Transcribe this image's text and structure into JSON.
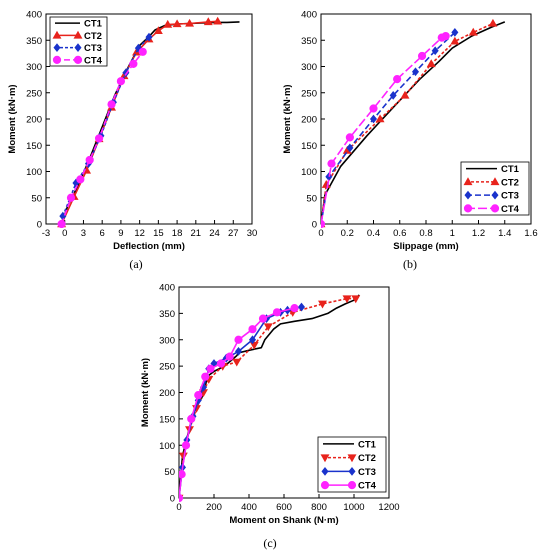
{
  "panel_captions": [
    "(a)",
    "(b)",
    "(c)"
  ],
  "chart_data": [
    {
      "type": "line",
      "panel": "(a)",
      "xlabel": "Deflection (mm)",
      "ylabel": "Moment (kN·m)",
      "xlim": [
        -3,
        30
      ],
      "ylim": [
        0,
        400
      ],
      "xticks": [
        -3,
        0,
        3,
        6,
        9,
        12,
        15,
        18,
        21,
        24,
        27,
        30
      ],
      "yticks": [
        0,
        50,
        100,
        150,
        200,
        250,
        300,
        350,
        400
      ],
      "legend_position": "top-left",
      "grid": false,
      "series": [
        {
          "name": "CT1",
          "color": "#000000",
          "dash": "",
          "marker": "none",
          "x": [
            -0.5,
            0.5,
            2,
            4,
            6,
            8,
            10,
            12,
            13.5,
            14.5,
            16,
            18,
            20,
            22,
            24,
            26,
            28
          ],
          "y": [
            0,
            35,
            70,
            125,
            185,
            245,
            295,
            340,
            357,
            370,
            378,
            381,
            382,
            383,
            384,
            384,
            385
          ]
        },
        {
          "name": "CT2",
          "color": "#e8231c",
          "dash": "",
          "marker": "triangle-up",
          "x": [
            -0.5,
            1.5,
            3.5,
            5.5,
            7.5,
            9.5,
            11.5,
            13.5,
            15,
            16.5,
            18,
            20,
            23,
            24.5
          ],
          "y": [
            0,
            52,
            102,
            162,
            222,
            282,
            327,
            352,
            368,
            380,
            381,
            382,
            385,
            386
          ]
        },
        {
          "name": "CT3",
          "color": "#1a33cc",
          "dash": "3,2",
          "marker": "diamond",
          "x": [
            -0.3,
            1.8,
            3.8,
            5.8,
            7.8,
            9.8,
            11.8,
            13.5
          ],
          "y": [
            15,
            78,
            115,
            168,
            232,
            288,
            335,
            356
          ]
        },
        {
          "name": "CT4",
          "color": "#ff22ff",
          "dash": "6,3",
          "marker": "circle",
          "x": [
            -0.5,
            1,
            2.5,
            4,
            5.5,
            7.5,
            9,
            11,
            12.5
          ],
          "y": [
            0,
            50,
            85,
            122,
            163,
            228,
            272,
            305,
            328
          ]
        }
      ]
    },
    {
      "type": "line",
      "panel": "(b)",
      "xlabel": "Slippage (mm)",
      "ylabel": "Moment (kN·m)",
      "xlim": [
        0,
        1.6
      ],
      "ylim": [
        0,
        400
      ],
      "xticks": [
        0,
        0.2,
        0.4,
        0.6,
        0.8,
        1,
        1.2,
        1.4,
        1.6
      ],
      "yticks": [
        0,
        50,
        100,
        150,
        200,
        250,
        300,
        350,
        400
      ],
      "legend_position": "bottom-right",
      "grid": false,
      "series": [
        {
          "name": "CT1",
          "color": "#000000",
          "dash": "",
          "marker": "none",
          "x": [
            0,
            0.03,
            0.15,
            0.35,
            0.55,
            0.75,
            0.9,
            1,
            1.15,
            1.3,
            1.4
          ],
          "y": [
            0,
            55,
            110,
            168,
            222,
            275,
            310,
            335,
            358,
            375,
            385
          ]
        },
        {
          "name": "CT2",
          "color": "#e8231c",
          "dash": "3,2",
          "marker": "triangle-up",
          "x": [
            0,
            0.04,
            0.2,
            0.45,
            0.64,
            0.84,
            1.02,
            1.16,
            1.31
          ],
          "y": [
            0,
            75,
            140,
            200,
            245,
            305,
            348,
            365,
            382
          ]
        },
        {
          "name": "CT3",
          "color": "#1a33cc",
          "dash": "6,3",
          "marker": "diamond",
          "x": [
            0,
            0.06,
            0.22,
            0.4,
            0.55,
            0.72,
            0.87,
            1.02
          ],
          "y": [
            0,
            90,
            145,
            200,
            245,
            290,
            330,
            365
          ]
        },
        {
          "name": "CT4",
          "color": "#ff22ff",
          "dash": "9,3",
          "marker": "circle",
          "x": [
            0,
            0.08,
            0.22,
            0.4,
            0.58,
            0.77,
            0.92,
            0.95
          ],
          "y": [
            0,
            115,
            165,
            220,
            276,
            320,
            355,
            358
          ]
        }
      ]
    },
    {
      "type": "line",
      "panel": "(c)",
      "xlabel": "Moment on Shank (N·m)",
      "ylabel": "Moment (kN·m)",
      "xlim": [
        0,
        1200
      ],
      "ylim": [
        0,
        400
      ],
      "xticks": [
        0,
        200,
        400,
        600,
        800,
        1000,
        1200
      ],
      "yticks": [
        0,
        50,
        100,
        150,
        200,
        250,
        300,
        350,
        400
      ],
      "legend_position": "bottom-right",
      "grid": false,
      "series": [
        {
          "name": "CT1",
          "color": "#000000",
          "dash": "",
          "marker": "none",
          "x": [
            0,
            20,
            50,
            80,
            110,
            130,
            150,
            160,
            200,
            260,
            330,
            340,
            400,
            470,
            490,
            540,
            580,
            660,
            760,
            850,
            900,
            950,
            1000,
            1030
          ],
          "y": [
            0,
            80,
            120,
            160,
            180,
            190,
            210,
            230,
            240,
            250,
            270,
            275,
            280,
            285,
            300,
            320,
            330,
            335,
            340,
            350,
            360,
            368,
            375,
            385
          ]
        },
        {
          "name": "CT2",
          "color": "#e8231c",
          "dash": "3,2",
          "marker": "triangle-down",
          "x": [
            0,
            25,
            60,
            100,
            140,
            170,
            250,
            330,
            430,
            510,
            650,
            820,
            960,
            1010
          ],
          "y": [
            0,
            80,
            130,
            170,
            200,
            225,
            250,
            258,
            290,
            325,
            352,
            368,
            378,
            378
          ]
        },
        {
          "name": "CT3",
          "color": "#1a33cc",
          "dash": "",
          "marker": "diamond",
          "x": [
            0,
            20,
            45,
            80,
            110,
            140,
            170,
            200,
            270,
            340,
            420,
            500,
            580,
            620,
            700
          ],
          "y": [
            0,
            58,
            110,
            155,
            185,
            210,
            245,
            255,
            265,
            278,
            300,
            340,
            352,
            356,
            362
          ]
        },
        {
          "name": "CT4",
          "color": "#ff22ff",
          "dash": "",
          "marker": "circle",
          "x": [
            0,
            15,
            40,
            70,
            110,
            150,
            180,
            240,
            290,
            340,
            420,
            480,
            560,
            660
          ],
          "y": [
            0,
            45,
            100,
            150,
            195,
            230,
            245,
            255,
            268,
            300,
            320,
            340,
            352,
            360
          ]
        }
      ]
    }
  ]
}
